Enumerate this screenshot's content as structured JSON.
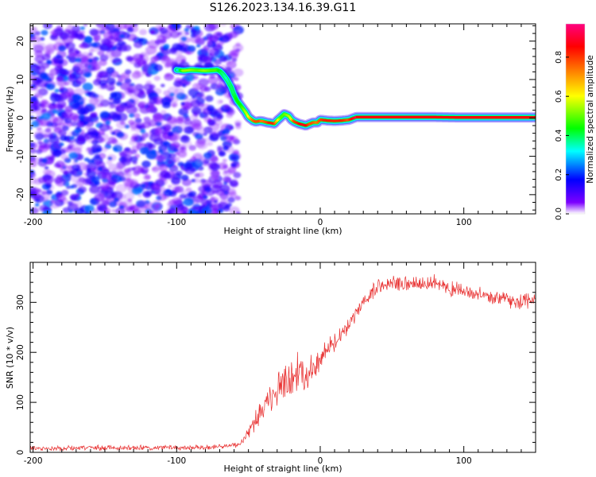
{
  "title": "S126.2023.134.16.39.G11",
  "chart_data": [
    {
      "type": "heatmap",
      "xlabel": "Height of straight line (km)",
      "ylabel": "Frequency (Hz)",
      "xlim": [
        -202,
        150
      ],
      "ylim": [
        -25,
        24.5
      ],
      "x_ticks": [
        -200,
        -100,
        0,
        100
      ],
      "y_ticks": [
        -20,
        -10,
        0,
        10,
        20
      ],
      "colorbar": {
        "label": "Normalized spectral amplitude",
        "range": [
          0,
          0.97
        ],
        "ticks": [
          "0.0",
          "0.2",
          "0.4",
          "0.6",
          "0.8"
        ],
        "tick_values": [
          0,
          0.2,
          0.4,
          0.6,
          0.8
        ],
        "colormap": [
          "#ffffff",
          "#7c00ff",
          "#0000ff",
          "#00ffff",
          "#00ff00",
          "#ffff00",
          "#ff8000",
          "#ff0000",
          "#ff0080"
        ]
      },
      "noise_region": {
        "x": [
          -202,
          -57
        ],
        "y": [
          -25,
          24.5
        ],
        "amplitude": [
          0.05,
          0.25
        ]
      },
      "ridge": {
        "x": [
          -100,
          -95,
          -90,
          -85,
          -80,
          -75,
          -72,
          -70,
          -68,
          -65,
          -62,
          -60,
          -58,
          -55,
          -52,
          -50,
          -47,
          -45,
          -42,
          -40,
          -37,
          -35,
          -32,
          -30,
          -27,
          -25,
          -22,
          -20,
          -18,
          -15,
          -12,
          -10,
          -7,
          -5,
          -2,
          0,
          3,
          5,
          10,
          15,
          20,
          25,
          30,
          50,
          80,
          100,
          130,
          150
        ],
        "y": [
          12.5,
          12.3,
          12.5,
          12.4,
          12.3,
          12.4,
          12.5,
          12.2,
          11.5,
          10,
          8,
          6,
          4.5,
          3,
          1.5,
          0.2,
          -0.7,
          -1,
          -0.8,
          -0.9,
          -1.2,
          -1.3,
          -1.5,
          -0.7,
          0.3,
          1.0,
          0.5,
          -0.5,
          -1,
          -1.5,
          -1.8,
          -2.0,
          -1.5,
          -1.2,
          -1.2,
          -0.5,
          -0.6,
          -0.7,
          -0.8,
          -0.7,
          -0.5,
          0.2,
          0.2,
          0.2,
          0.2,
          0.1,
          0.1,
          0.1
        ],
        "amplitude": [
          0.25,
          0.55,
          0.55,
          0.5,
          0.55,
          0.5,
          0.5,
          0.45,
          0.4,
          0.35,
          0.4,
          0.4,
          0.45,
          0.45,
          0.55,
          0.6,
          0.75,
          0.8,
          0.8,
          0.75,
          0.8,
          0.85,
          0.85,
          0.7,
          0.5,
          0.5,
          0.55,
          0.6,
          0.8,
          0.85,
          0.9,
          0.9,
          0.8,
          0.8,
          0.75,
          0.8,
          0.85,
          0.85,
          0.85,
          0.85,
          0.8,
          0.95,
          0.95,
          0.95,
          0.95,
          0.95,
          0.95,
          0.95
        ]
      },
      "flat_segment": {
        "x": [
          25,
          150
        ],
        "y": 0.2,
        "amplitude": 0.95
      }
    },
    {
      "type": "line",
      "xlabel": "Height of straight line (km)",
      "ylabel": "SNR (10 * v/v)",
      "xlim": [
        -202,
        150
      ],
      "ylim": [
        0,
        380
      ],
      "x_ticks": [
        -200,
        -100,
        0,
        100
      ],
      "y_ticks": [
        0,
        100,
        200,
        300
      ],
      "color": "#e83030",
      "x": [
        -202,
        -180,
        -160,
        -140,
        -120,
        -100,
        -80,
        -70,
        -62,
        -58,
        -55,
        -52,
        -48,
        -45,
        -42,
        -38,
        -35,
        -30,
        -25,
        -20,
        -15,
        -10,
        -5,
        0,
        5,
        10,
        15,
        20,
        25,
        30,
        35,
        40,
        45,
        50,
        60,
        70,
        80,
        90,
        100,
        110,
        120,
        130,
        140,
        150
      ],
      "y": [
        8,
        8,
        9,
        9,
        9,
        10,
        10,
        12,
        14,
        15,
        18,
        32,
        50,
        65,
        80,
        95,
        110,
        120,
        140,
        160,
        160,
        150,
        175,
        185,
        205,
        220,
        240,
        255,
        275,
        295,
        315,
        330,
        335,
        340,
        335,
        335,
        340,
        330,
        320,
        315,
        310,
        305,
        300,
        305
      ],
      "noise": [
        6,
        6,
        6,
        6,
        6,
        6,
        6,
        6,
        6,
        6,
        8,
        12,
        18,
        22,
        25,
        28,
        35,
        45,
        50,
        55,
        45,
        40,
        35,
        30,
        25,
        22,
        22,
        22,
        22,
        20,
        20,
        18,
        18,
        18,
        18,
        18,
        18,
        18,
        18,
        18,
        18,
        18,
        18,
        18
      ]
    }
  ]
}
